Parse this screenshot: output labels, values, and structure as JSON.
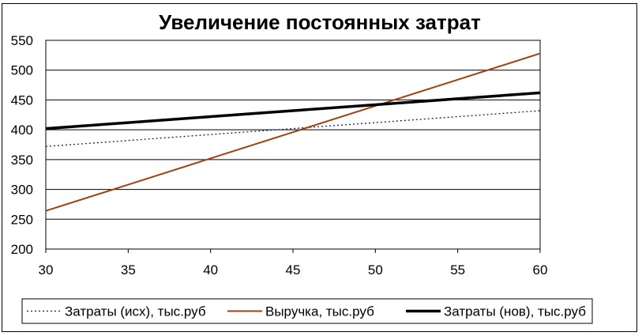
{
  "chart_data": {
    "type": "line",
    "title": "Увеличение постоянных затрат",
    "xlabel": "",
    "ylabel": "",
    "x": [
      30,
      35,
      40,
      45,
      50,
      55,
      60
    ],
    "xlim": [
      30,
      60
    ],
    "ylim": [
      200,
      550
    ],
    "x_ticks": [
      "30",
      "35",
      "40",
      "45",
      "50",
      "55",
      "60"
    ],
    "y_ticks": [
      "200",
      "250",
      "300",
      "350",
      "400",
      "450",
      "500",
      "550"
    ],
    "grid": "horizontal",
    "legend_position": "bottom",
    "series": [
      {
        "name": "Затраты (исх), тыс.руб",
        "values": [
          372,
          382,
          392,
          402,
          412,
          422,
          432
        ],
        "color": "#1a1a66",
        "style": "dotted"
      },
      {
        "name": "Выручка, тыс.руб",
        "values": [
          264,
          308,
          352,
          396,
          440,
          484,
          528
        ],
        "color": "#a0400e",
        "style": "solid"
      },
      {
        "name": "Затраты (нов), тыс.руб",
        "values": [
          402,
          412,
          422,
          432,
          442,
          452,
          462
        ],
        "color": "#000000",
        "style": "solid-bold"
      }
    ]
  }
}
